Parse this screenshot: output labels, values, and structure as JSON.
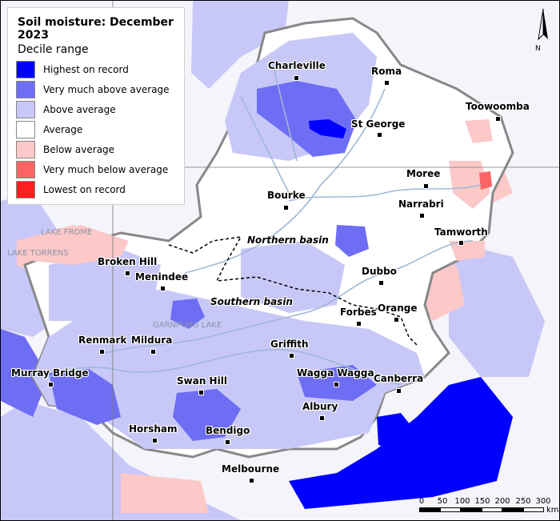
{
  "legend": {
    "title": "Soil moisture: December 2023",
    "subtitle": "Decile range",
    "items": [
      {
        "label": "Highest on record",
        "color": "#0000ff"
      },
      {
        "label": "Very much above average",
        "color": "#6e6ef5"
      },
      {
        "label": "Above average",
        "color": "#c8c8f8"
      },
      {
        "label": "Average",
        "color": "#ffffff"
      },
      {
        "label": "Below average",
        "color": "#fcc8c8"
      },
      {
        "label": "Very much below average",
        "color": "#fa6464"
      },
      {
        "label": "Lowest on record",
        "color": "#ff1e1e"
      }
    ]
  },
  "towns": {
    "charleville": "Charleville",
    "roma": "Roma",
    "toowoomba": "Toowoomba",
    "st_george": "St George",
    "moree": "Moree",
    "bourke": "Bourke",
    "narrabri": "Narrabri",
    "tamworth": "Tamworth",
    "broken_hill": "Broken Hill",
    "menindee": "Menindee",
    "dubbo": "Dubbo",
    "orange": "Orange",
    "forbes": "Forbes",
    "renmark": "Renmark",
    "mildura": "Mildura",
    "griffith": "Griffith",
    "murray_bridge": "Murray Bridge",
    "swan_hill": "Swan Hill",
    "wagga_wagga": "Wagga Wagga",
    "canberra": "Canberra",
    "albury": "Albury",
    "horsham": "Horsham",
    "bendigo": "Bendigo",
    "melbourne": "Melbourne"
  },
  "basins": {
    "northern": "Northern basin",
    "southern": "Southern basin"
  },
  "lakes": {
    "frome": "LAKE FROME",
    "torrens": "LAKE TORRENS",
    "garnpung": "GARNPUNG LAKE"
  },
  "scale": {
    "ticks": [
      "0",
      "50",
      "100",
      "150",
      "200",
      "250",
      "300"
    ],
    "unit": "km"
  },
  "north_label": "N",
  "colors": {
    "highest": "#0000ff",
    "very_much_above": "#6e6ef5",
    "above": "#c8c8f8",
    "average": "#ffffff",
    "below": "#fcc8c8",
    "very_much_below": "#fa6464",
    "lowest": "#ff1e1e",
    "rivers": "#9fb8d6"
  }
}
